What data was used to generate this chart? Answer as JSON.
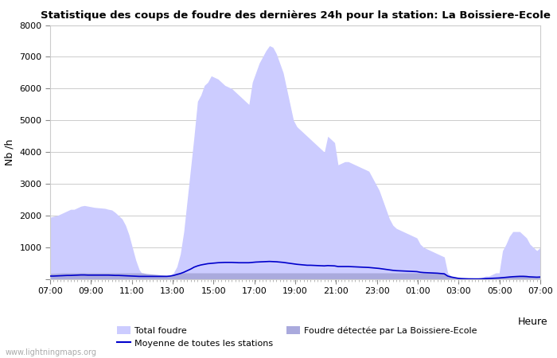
{
  "title": "Statistique des coups de foudre des dernières 24h pour la station: La Boissiere-Ecole",
  "xlabel": "Heure",
  "ylabel": "Nb /h",
  "watermark": "www.lightningmaps.org",
  "ylim": [
    0,
    8000
  ],
  "yticks": [
    0,
    1000,
    2000,
    3000,
    4000,
    5000,
    6000,
    7000,
    8000
  ],
  "x_labels": [
    "07:00",
    "09:00",
    "11:00",
    "13:00",
    "15:00",
    "17:00",
    "19:00",
    "21:00",
    "23:00",
    "01:00",
    "03:00",
    "05:00",
    "07:00"
  ],
  "total_foudre_color": "#ccccff",
  "local_foudre_color": "#aaaadd",
  "moyenne_color": "#0000cc",
  "background_color": "#ffffff",
  "grid_color": "#cccccc",
  "legend_total": "Total foudre",
  "legend_moyenne": "Moyenne de toutes les stations",
  "legend_local": "Foudre détectée par La Boissiere-Ecole",
  "n_points": 144,
  "total_foudre": [
    1950,
    1980,
    2000,
    2050,
    2100,
    2150,
    2200,
    2200,
    2250,
    2300,
    2320,
    2300,
    2280,
    2260,
    2250,
    2240,
    2230,
    2200,
    2180,
    2100,
    2000,
    1900,
    1700,
    1400,
    1000,
    600,
    300,
    150,
    80,
    50,
    30,
    20,
    30,
    50,
    80,
    120,
    200,
    400,
    800,
    1500,
    2500,
    3500,
    4500,
    5600,
    5800,
    6100,
    6200,
    6400,
    6350,
    6300,
    6200,
    6100,
    6050,
    6000,
    5900,
    5800,
    5700,
    5600,
    5500,
    6200,
    6500,
    6800,
    7000,
    7200,
    7350,
    7300,
    7100,
    6800,
    6500,
    6000,
    5500,
    5000,
    4800,
    4700,
    4600,
    4500,
    4400,
    4300,
    4200,
    4100,
    4000,
    4500,
    4400,
    4300,
    3600,
    3650,
    3700,
    3700,
    3650,
    3600,
    3550,
    3500,
    3450,
    3400,
    3200,
    3000,
    2800,
    2500,
    2200,
    1900,
    1700,
    1600,
    1550,
    1500,
    1450,
    1400,
    1350,
    1300,
    1100,
    1000,
    950,
    900,
    850,
    800,
    750,
    700,
    200,
    100,
    50,
    20,
    10,
    10,
    10,
    10,
    10,
    10,
    50,
    100,
    100,
    150,
    200,
    200,
    900,
    1100,
    1350,
    1500,
    1500,
    1500,
    1400,
    1300,
    1100,
    1000,
    900,
    1000
  ],
  "local_foudre": [
    180,
    185,
    190,
    195,
    200,
    200,
    200,
    200,
    200,
    200,
    200,
    200,
    200,
    200,
    200,
    200,
    200,
    200,
    200,
    200,
    200,
    200,
    200,
    200,
    200,
    200,
    200,
    200,
    180,
    170,
    160,
    150,
    140,
    130,
    120,
    120,
    150,
    200,
    200,
    200,
    200,
    200,
    200,
    200,
    200,
    200,
    200,
    200,
    200,
    200,
    200,
    200,
    200,
    200,
    200,
    200,
    200,
    200,
    200,
    200,
    200,
    200,
    200,
    200,
    200,
    200,
    200,
    200,
    200,
    200,
    200,
    200,
    200,
    200,
    200,
    200,
    200,
    200,
    200,
    200,
    200,
    200,
    200,
    200,
    200,
    200,
    200,
    200,
    200,
    200,
    200,
    200,
    200,
    200,
    200,
    200,
    200,
    200,
    200,
    200,
    200,
    200,
    200,
    200,
    200,
    200,
    200,
    200,
    200,
    200,
    200,
    200,
    200,
    200,
    200,
    200,
    100,
    80,
    60,
    40,
    20,
    15,
    10,
    10,
    10,
    10,
    20,
    30,
    40,
    50,
    60,
    70,
    80,
    90,
    100,
    110,
    120,
    130,
    130,
    120,
    100,
    90,
    80,
    90
  ],
  "moyenne": [
    100,
    100,
    105,
    110,
    115,
    120,
    120,
    125,
    130,
    135,
    135,
    130,
    130,
    130,
    130,
    130,
    130,
    130,
    125,
    120,
    120,
    115,
    110,
    105,
    100,
    95,
    90,
    90,
    90,
    90,
    90,
    90,
    90,
    90,
    90,
    100,
    120,
    150,
    180,
    220,
    270,
    320,
    380,
    420,
    450,
    470,
    490,
    500,
    510,
    520,
    525,
    530,
    530,
    530,
    525,
    520,
    520,
    520,
    520,
    530,
    540,
    545,
    550,
    555,
    560,
    555,
    550,
    540,
    530,
    515,
    500,
    485,
    470,
    460,
    450,
    440,
    440,
    435,
    430,
    425,
    420,
    430,
    425,
    420,
    400,
    400,
    400,
    400,
    395,
    390,
    385,
    380,
    375,
    370,
    360,
    350,
    340,
    325,
    310,
    295,
    280,
    270,
    265,
    260,
    255,
    250,
    245,
    240,
    220,
    210,
    205,
    200,
    195,
    190,
    180,
    170,
    100,
    70,
    50,
    30,
    20,
    15,
    12,
    10,
    10,
    10,
    15,
    20,
    25,
    30,
    35,
    40,
    50,
    60,
    70,
    80,
    85,
    90,
    90,
    85,
    75,
    70,
    65,
    70
  ]
}
